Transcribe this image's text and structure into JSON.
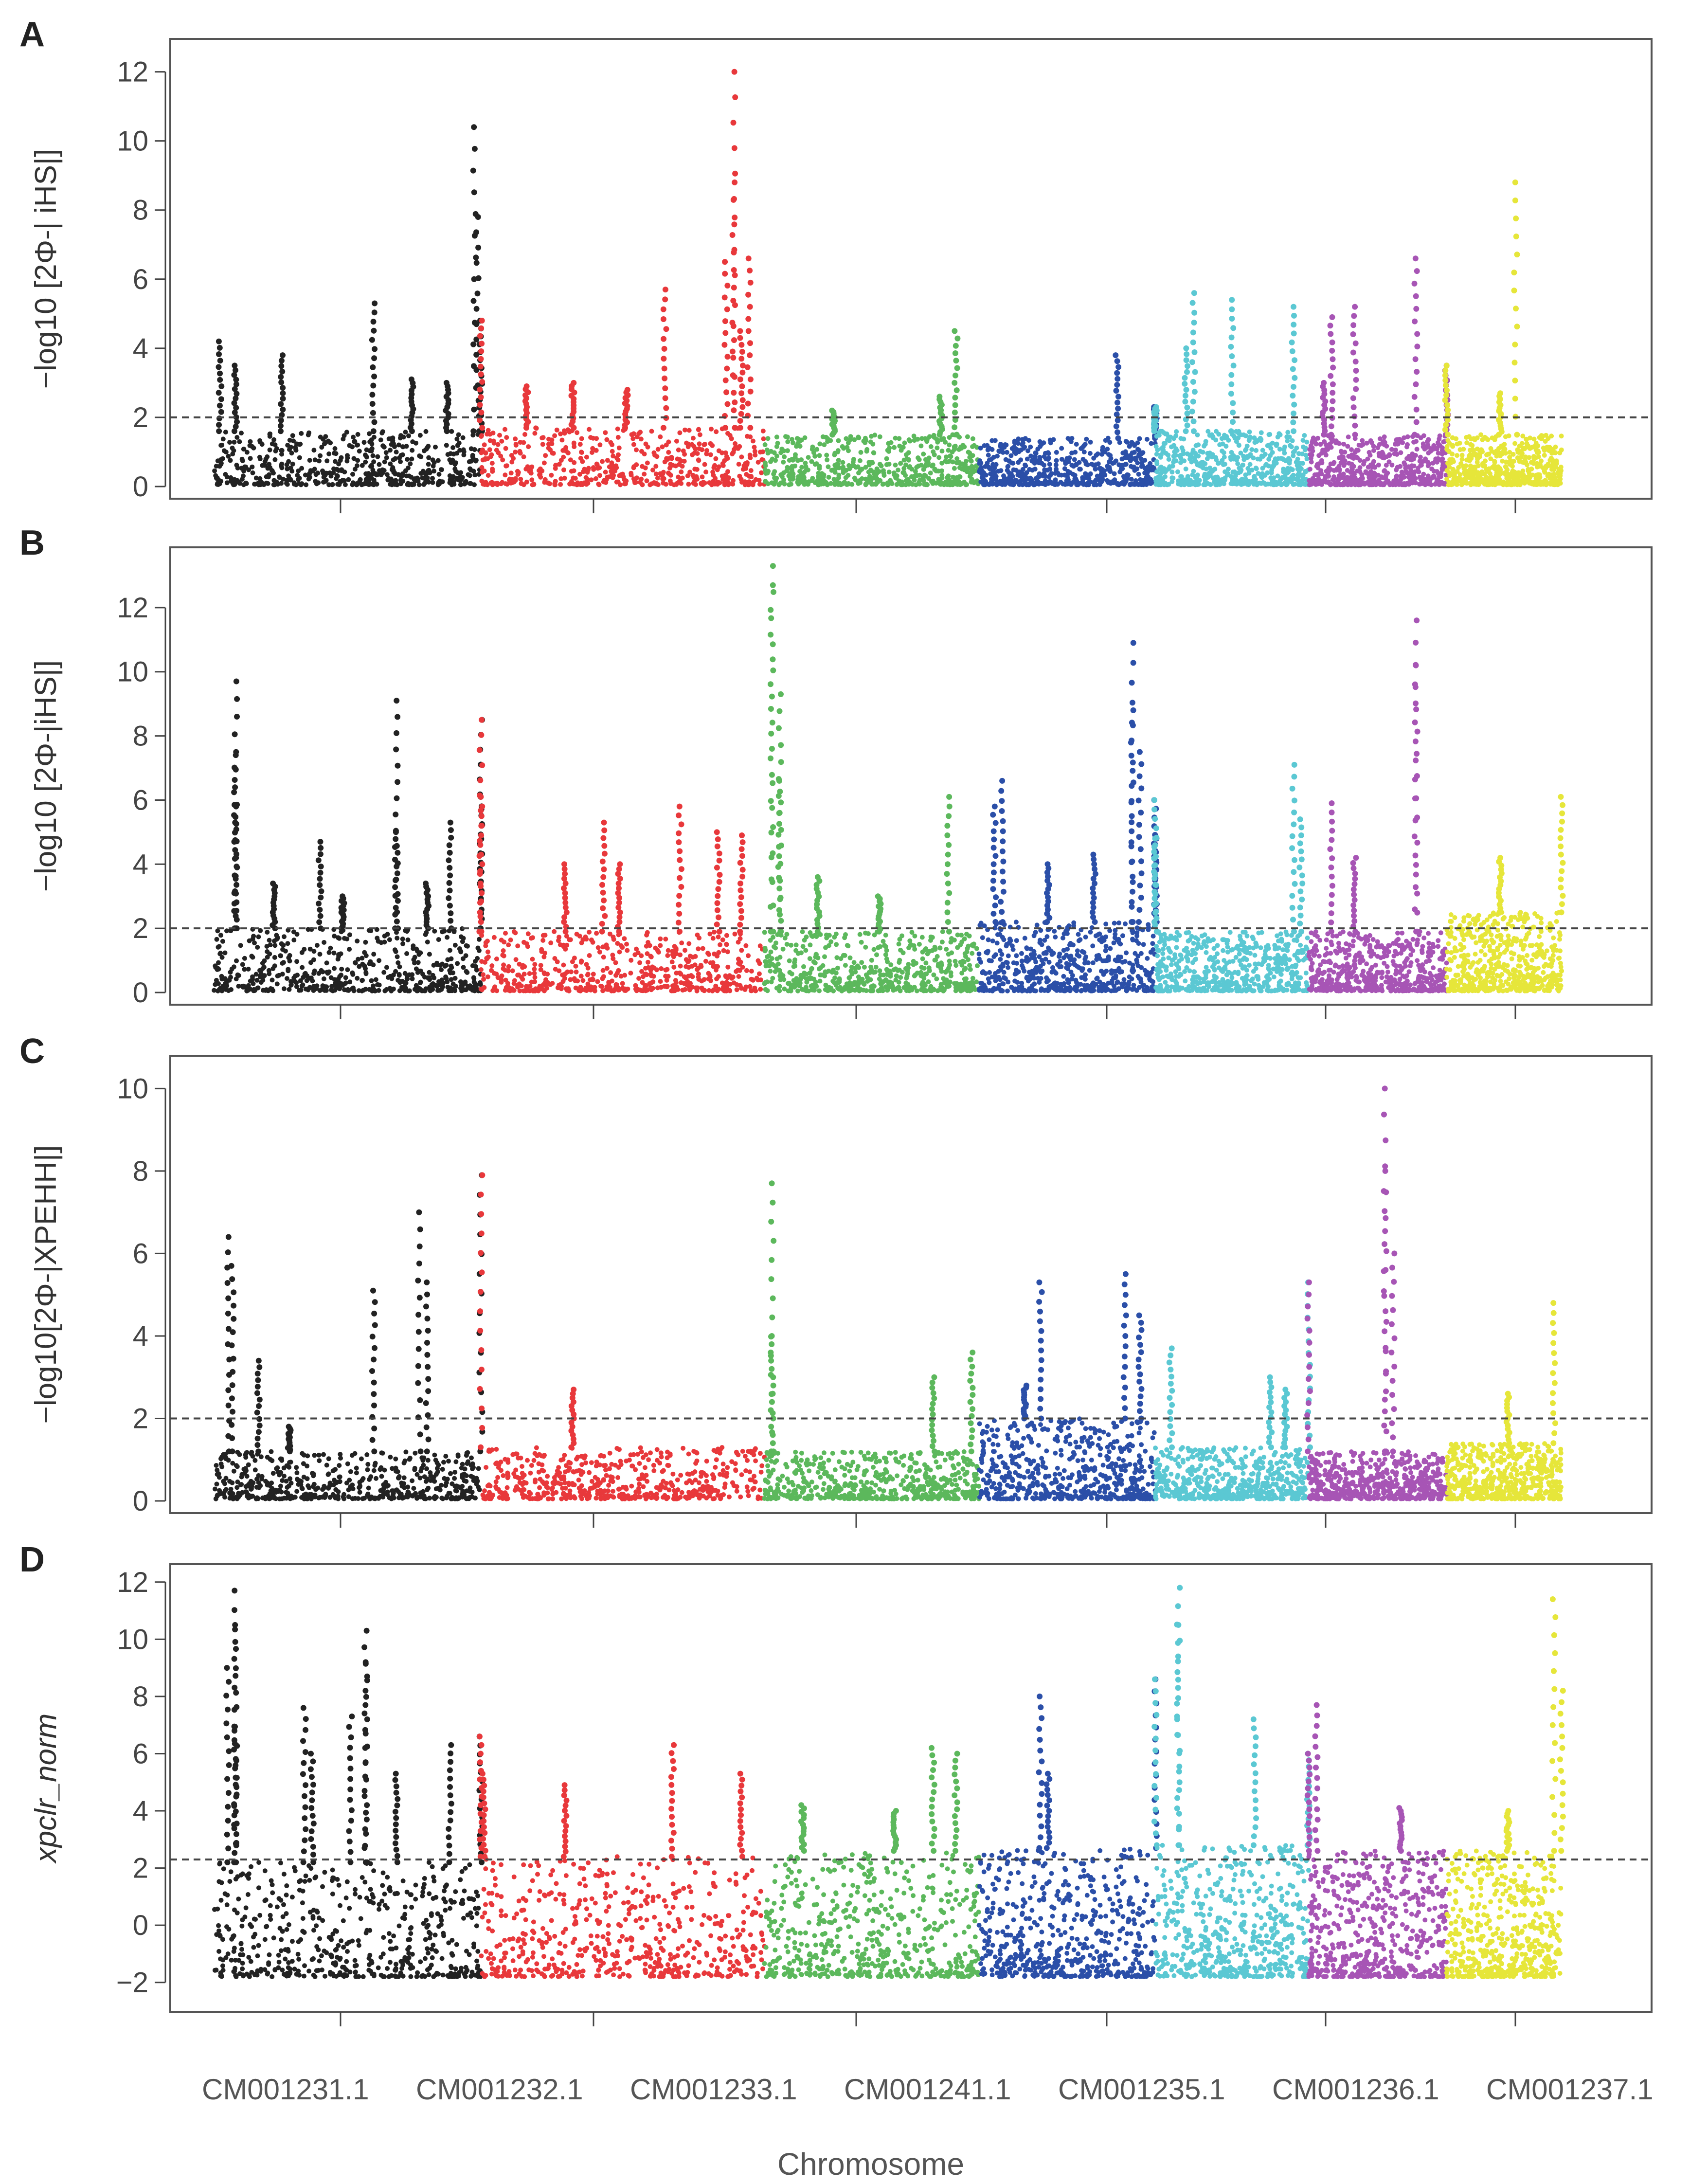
{
  "figure": {
    "x_title": "Chromosome"
  },
  "chart_data": [
    {
      "panel": "A",
      "type": "scatter",
      "ylabel": "−log10 [2Φ-| iHS|]",
      "ylim": [
        0,
        12.6
      ],
      "yticks": [
        "0",
        "2",
        "4",
        "6",
        "8",
        "10",
        "12"
      ],
      "tick_values": [
        0,
        2,
        4,
        6,
        8,
        10,
        12
      ],
      "threshold": 2,
      "chromosomes": [
        "CM001231.1",
        "CM001232.1",
        "CM001233.1",
        "CM001241.1",
        "CM001235.1",
        "CM001236.1",
        "CM001237.1"
      ],
      "colors": [
        "#222222",
        "#e8383b",
        "#5cb85c",
        "#2b4fa8",
        "#5bc8d3",
        "#a755b5",
        "#e6e63a"
      ],
      "chromosome_ranges": [
        [
          0.16,
          1.9
        ],
        [
          1.9,
          3.75
        ],
        [
          3.75,
          5.15
        ],
        [
          5.15,
          6.3
        ],
        [
          6.3,
          7.3
        ],
        [
          7.3,
          8.2
        ],
        [
          8.2,
          8.95
        ]
      ],
      "base_max": [
        1.6,
        1.7,
        1.5,
        1.4,
        1.6,
        1.5,
        1.5
      ],
      "peaks": [
        [
          0.2,
          4.2
        ],
        [
          0.3,
          3.5
        ],
        [
          0.6,
          3.8
        ],
        [
          1.2,
          5.3
        ],
        [
          1.45,
          3.1
        ],
        [
          1.68,
          3.0
        ],
        [
          1.86,
          10.4
        ],
        [
          1.88,
          7.8
        ],
        [
          1.9,
          4.8
        ],
        [
          2.2,
          2.9
        ],
        [
          2.5,
          3.0
        ],
        [
          2.85,
          2.8
        ],
        [
          3.1,
          5.7
        ],
        [
          3.55,
          12.0
        ],
        [
          3.55,
          8.8
        ],
        [
          3.5,
          6.5
        ],
        [
          3.65,
          6.6
        ],
        [
          3.6,
          4.5
        ],
        [
          4.2,
          2.2
        ],
        [
          4.9,
          2.6
        ],
        [
          5.0,
          4.5
        ],
        [
          6.05,
          3.8
        ],
        [
          6.3,
          2.3
        ],
        [
          6.55,
          5.6
        ],
        [
          6.5,
          4.0
        ],
        [
          6.8,
          5.4
        ],
        [
          7.2,
          5.2
        ],
        [
          7.4,
          3.0
        ],
        [
          7.6,
          5.2
        ],
        [
          7.45,
          4.9
        ],
        [
          8.0,
          6.6
        ],
        [
          8.2,
          3.5
        ],
        [
          8.55,
          2.7
        ],
        [
          8.65,
          8.8
        ]
      ]
    },
    {
      "panel": "B",
      "type": "scatter",
      "ylabel": "−log10 [2Φ-|iHS|]",
      "ylim": [
        0,
        13.5
      ],
      "yticks": [
        "0",
        "2",
        "4",
        "6",
        "8",
        "10",
        "12"
      ],
      "tick_values": [
        0,
        2,
        4,
        6,
        8,
        10,
        12
      ],
      "threshold": 2,
      "chromosomes": [
        "CM001231.1",
        "CM001232.1",
        "CM001233.1",
        "CM001241.1",
        "CM001235.1",
        "CM001236.1",
        "CM001237.1"
      ],
      "colors": [
        "#222222",
        "#e8383b",
        "#5cb85c",
        "#2b4fa8",
        "#5bc8d3",
        "#a755b5",
        "#e6e63a"
      ],
      "chromosome_ranges": [
        [
          0.16,
          1.9
        ],
        [
          1.9,
          3.75
        ],
        [
          3.75,
          5.15
        ],
        [
          5.15,
          6.3
        ],
        [
          6.3,
          7.3
        ],
        [
          7.3,
          8.2
        ],
        [
          8.2,
          8.95
        ]
      ],
      "base_max": [
        2.0,
        1.9,
        1.9,
        2.2,
        1.9,
        1.9,
        2.5
      ],
      "peaks": [
        [
          0.3,
          9.7
        ],
        [
          0.3,
          7.4
        ],
        [
          0.3,
          5.8
        ],
        [
          0.55,
          3.4
        ],
        [
          0.85,
          4.7
        ],
        [
          1.0,
          3.0
        ],
        [
          1.35,
          9.1
        ],
        [
          1.35,
          5.0
        ],
        [
          1.55,
          3.4
        ],
        [
          1.7,
          5.3
        ],
        [
          1.9,
          8.5
        ],
        [
          1.9,
          6.1
        ],
        [
          2.45,
          4.0
        ],
        [
          2.7,
          5.3
        ],
        [
          2.8,
          4.0
        ],
        [
          3.2,
          5.8
        ],
        [
          3.45,
          5.0
        ],
        [
          3.6,
          4.9
        ],
        [
          3.8,
          13.3
        ],
        [
          3.8,
          12.7
        ],
        [
          3.85,
          9.3
        ],
        [
          3.85,
          6.6
        ],
        [
          4.1,
          3.6
        ],
        [
          4.5,
          3.0
        ],
        [
          4.95,
          6.1
        ],
        [
          5.25,
          5.8
        ],
        [
          5.3,
          6.6
        ],
        [
          5.6,
          4.0
        ],
        [
          5.9,
          4.3
        ],
        [
          6.15,
          10.9
        ],
        [
          6.15,
          8.8
        ],
        [
          6.2,
          7.5
        ],
        [
          6.3,
          6.0
        ],
        [
          6.3,
          4.8
        ],
        [
          7.2,
          7.1
        ],
        [
          7.25,
          5.4
        ],
        [
          7.45,
          5.9
        ],
        [
          7.6,
          4.2
        ],
        [
          8.0,
          11.6
        ],
        [
          8.0,
          10.2
        ],
        [
          8.55,
          4.2
        ],
        [
          8.95,
          6.1
        ]
      ]
    },
    {
      "panel": "C",
      "type": "scatter",
      "ylabel": "−log10[2Φ-|XPEHH|]",
      "ylim": [
        0,
        10.5
      ],
      "yticks": [
        "0",
        "2",
        "4",
        "6",
        "8",
        "10"
      ],
      "tick_values": [
        0,
        2,
        4,
        6,
        8,
        10
      ],
      "threshold": 2,
      "chromosomes": [
        "CM001231.1",
        "CM001232.1",
        "CM001233.1",
        "CM001241.1",
        "CM001235.1",
        "CM001236.1",
        "CM001237.1"
      ],
      "colors": [
        "#222222",
        "#e8383b",
        "#5cb85c",
        "#2b4fa8",
        "#5bc8d3",
        "#a755b5",
        "#e6e63a"
      ],
      "chromosome_ranges": [
        [
          0.16,
          1.9
        ],
        [
          1.9,
          3.75
        ],
        [
          3.75,
          5.15
        ],
        [
          5.15,
          6.3
        ],
        [
          6.3,
          7.3
        ],
        [
          7.3,
          8.2
        ],
        [
          8.2,
          8.95
        ]
      ],
      "base_max": [
        1.2,
        1.3,
        1.2,
        2.0,
        1.3,
        1.2,
        1.4
      ],
      "peaks": [
        [
          0.25,
          6.4
        ],
        [
          0.28,
          5.7
        ],
        [
          0.45,
          3.4
        ],
        [
          0.65,
          1.8
        ],
        [
          1.2,
          5.1
        ],
        [
          1.5,
          7.0
        ],
        [
          1.55,
          5.3
        ],
        [
          1.9,
          7.9
        ],
        [
          2.5,
          2.7
        ],
        [
          3.8,
          7.7
        ],
        [
          3.8,
          4.0
        ],
        [
          4.85,
          3.0
        ],
        [
          5.1,
          3.6
        ],
        [
          5.55,
          5.3
        ],
        [
          5.45,
          2.8
        ],
        [
          6.1,
          5.5
        ],
        [
          6.2,
          4.5
        ],
        [
          6.4,
          3.7
        ],
        [
          7.05,
          3.0
        ],
        [
          7.3,
          5.3
        ],
        [
          7.15,
          2.7
        ],
        [
          7.8,
          10.0
        ],
        [
          7.8,
          8.0
        ],
        [
          7.85,
          6.0
        ],
        [
          8.6,
          2.6
        ],
        [
          8.9,
          4.8
        ]
      ]
    },
    {
      "panel": "D",
      "type": "scatter",
      "ylabel": "xpclr_norm",
      "ylim": [
        -2.6,
        12.2
      ],
      "yticks": [
        "−2",
        "0",
        "2",
        "4",
        "6",
        "8",
        "10",
        "12"
      ],
      "tick_values": [
        -2,
        0,
        2,
        4,
        6,
        8,
        10,
        12
      ],
      "threshold": 2.3,
      "chromosomes": [
        "CM001231.1",
        "CM001232.1",
        "CM001233.1",
        "CM001241.1",
        "CM001235.1",
        "CM001236.1",
        "CM001237.1"
      ],
      "colors": [
        "#222222",
        "#e8383b",
        "#5cb85c",
        "#2b4fa8",
        "#5bc8d3",
        "#a755b5",
        "#e6e63a"
      ],
      "chromosome_ranges": [
        [
          0.16,
          1.9
        ],
        [
          1.9,
          3.75
        ],
        [
          3.75,
          5.15
        ],
        [
          5.15,
          6.3
        ],
        [
          6.3,
          7.3
        ],
        [
          7.3,
          8.2
        ],
        [
          8.2,
          8.95
        ]
      ],
      "base_max": [
        2.2,
        2.4,
        2.6,
        2.7,
        2.8,
        2.6,
        2.6
      ],
      "base_min": -1.8,
      "peaks": [
        [
          0.3,
          11.7
        ],
        [
          0.3,
          10.5
        ],
        [
          0.25,
          9.0
        ],
        [
          0.3,
          6.8
        ],
        [
          0.75,
          7.6
        ],
        [
          0.8,
          6.0
        ],
        [
          1.05,
          7.3
        ],
        [
          1.15,
          10.3
        ],
        [
          1.15,
          9.2
        ],
        [
          1.35,
          5.3
        ],
        [
          1.7,
          6.3
        ],
        [
          1.9,
          6.6
        ],
        [
          1.92,
          5.3
        ],
        [
          2.45,
          4.9
        ],
        [
          3.15,
          6.3
        ],
        [
          3.6,
          5.3
        ],
        [
          4.0,
          4.2
        ],
        [
          4.6,
          4.0
        ],
        [
          4.85,
          6.2
        ],
        [
          5.0,
          6.0
        ],
        [
          5.55,
          8.0
        ],
        [
          5.6,
          5.3
        ],
        [
          6.3,
          8.6
        ],
        [
          6.45,
          11.8
        ],
        [
          6.45,
          10.5
        ],
        [
          6.95,
          7.2
        ],
        [
          7.35,
          7.7
        ],
        [
          7.3,
          6.0
        ],
        [
          7.9,
          4.1
        ],
        [
          8.6,
          4.0
        ],
        [
          8.9,
          11.4
        ],
        [
          8.95,
          8.2
        ]
      ]
    }
  ]
}
